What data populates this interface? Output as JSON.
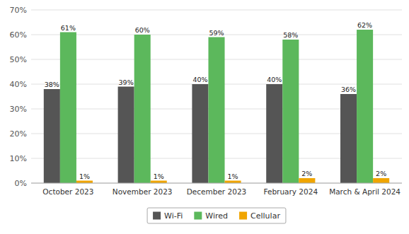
{
  "chart_data": {
    "type": "bar",
    "categories": [
      "October 2023",
      "November 2023",
      "December 2023",
      "February 2024",
      "March & April 2024"
    ],
    "series": [
      {
        "name": "Wi-Fi",
        "color": "#555555",
        "values": [
          38,
          39,
          40,
          40,
          36
        ],
        "value_labels": [
          "38%",
          "39%",
          "40%",
          "40%",
          "36%"
        ]
      },
      {
        "name": "Wired",
        "color": "#5cb85c",
        "values": [
          61,
          60,
          59,
          58,
          62
        ],
        "value_labels": [
          "61%",
          "60%",
          "59%",
          "58%",
          "62%"
        ]
      },
      {
        "name": "Cellular",
        "color": "#f0a500",
        "values": [
          1,
          1,
          1,
          2,
          2
        ],
        "value_labels": [
          "1%",
          "1%",
          "1%",
          "2%",
          "2%"
        ]
      }
    ],
    "ylim": [
      0,
      70
    ],
    "yticks": [
      {
        "value": 0,
        "label": "0%"
      },
      {
        "value": 10,
        "label": "10%"
      },
      {
        "value": 20,
        "label": "20%"
      },
      {
        "value": 30,
        "label": "30%"
      },
      {
        "value": 40,
        "label": "40%"
      },
      {
        "value": 50,
        "label": "50%"
      },
      {
        "value": 60,
        "label": "60%"
      },
      {
        "value": 70,
        "label": "70%"
      }
    ],
    "grid": true,
    "data_labels": true,
    "legend": "bottom"
  }
}
